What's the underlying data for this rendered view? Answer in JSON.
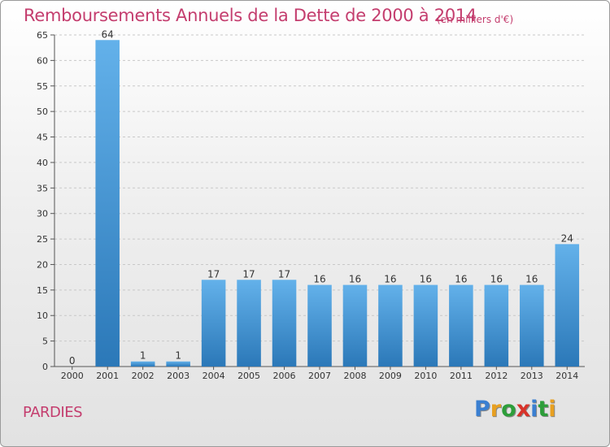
{
  "header": {
    "title": "Remboursements Annuels de la Dette de 2000 à 2014",
    "unit": "(en milliers d'€)"
  },
  "footer": {
    "commune": "PARDIES",
    "logo_letters": [
      "P",
      "r",
      "o",
      "x",
      "i",
      "t",
      "i"
    ],
    "logo_colors": [
      "#3a7fd1",
      "#e8a020",
      "#2d9e3a",
      "#d8332a",
      "#3a7fd1",
      "#2d9e3a",
      "#e8a020"
    ]
  },
  "colors": {
    "bar_top": "#63b1ea",
    "bar_bottom": "#2b78b8",
    "title": "#c43d6e"
  },
  "chart_data": {
    "type": "bar",
    "title": "Remboursements Annuels de la Dette de 2000 à 2014",
    "xlabel": "",
    "ylabel": "",
    "categories": [
      "2000",
      "2001",
      "2002",
      "2003",
      "2004",
      "2005",
      "2006",
      "2007",
      "2008",
      "2009",
      "2010",
      "2011",
      "2012",
      "2013",
      "2014"
    ],
    "values": [
      0,
      64,
      1,
      1,
      17,
      17,
      17,
      16,
      16,
      16,
      16,
      16,
      16,
      16,
      24
    ],
    "data_labels": [
      "0",
      "64",
      "1",
      "1",
      "17",
      "17",
      "17",
      "16",
      "16",
      "16",
      "16",
      "16",
      "16",
      "16",
      "24"
    ],
    "ylim": [
      0,
      65
    ],
    "yticks": [
      0,
      5,
      10,
      15,
      20,
      25,
      30,
      35,
      40,
      45,
      50,
      55,
      60,
      65
    ],
    "grid": true,
    "legend": "none"
  }
}
